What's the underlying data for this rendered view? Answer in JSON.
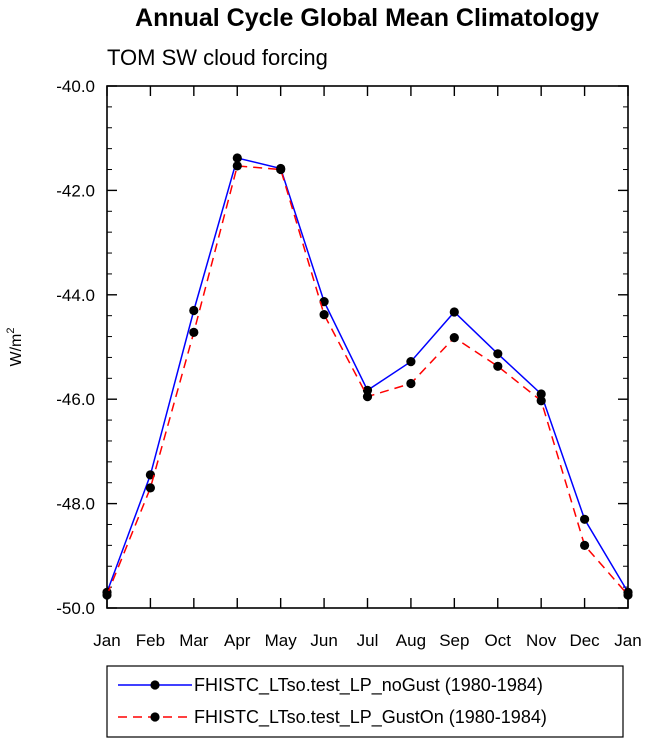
{
  "chart_data": {
    "type": "line",
    "title": "Annual Cycle Global Mean Climatology",
    "subtitle": "TOM SW cloud forcing",
    "ylabel": "W/m",
    "ylabel_sup": "2",
    "xlabel": "",
    "categories": [
      "Jan",
      "Feb",
      "Mar",
      "Apr",
      "May",
      "Jun",
      "Jul",
      "Aug",
      "Sep",
      "Oct",
      "Nov",
      "Dec",
      "Jan"
    ],
    "ylim": [
      -50.0,
      -40.0
    ],
    "yticks": [
      -50.0,
      -48.0,
      -46.0,
      -44.0,
      -42.0,
      -40.0
    ],
    "ytick_labels": [
      "-50.0",
      "-48.0",
      "-46.0",
      "-44.0",
      "-42.0",
      "-40.0"
    ],
    "grid": false,
    "legend_position": "bottom",
    "series": [
      {
        "name": "FHISTC_LTso.test_LP_noGust (1980-1984)",
        "color": "#0000ff",
        "dash": "solid",
        "values": [
          -49.7,
          -47.45,
          -44.3,
          -41.38,
          -41.58,
          -44.13,
          -45.83,
          -45.28,
          -44.33,
          -45.13,
          -45.9,
          -48.3,
          -49.7
        ]
      },
      {
        "name": "FHISTC_LTso.test_LP_GustOn (1980-1984)",
        "color": "#ff0000",
        "dash": "dashed",
        "values": [
          -49.75,
          -47.7,
          -44.72,
          -41.53,
          -41.6,
          -44.38,
          -45.95,
          -45.7,
          -44.82,
          -45.37,
          -46.03,
          -48.8,
          -49.75
        ]
      }
    ]
  }
}
